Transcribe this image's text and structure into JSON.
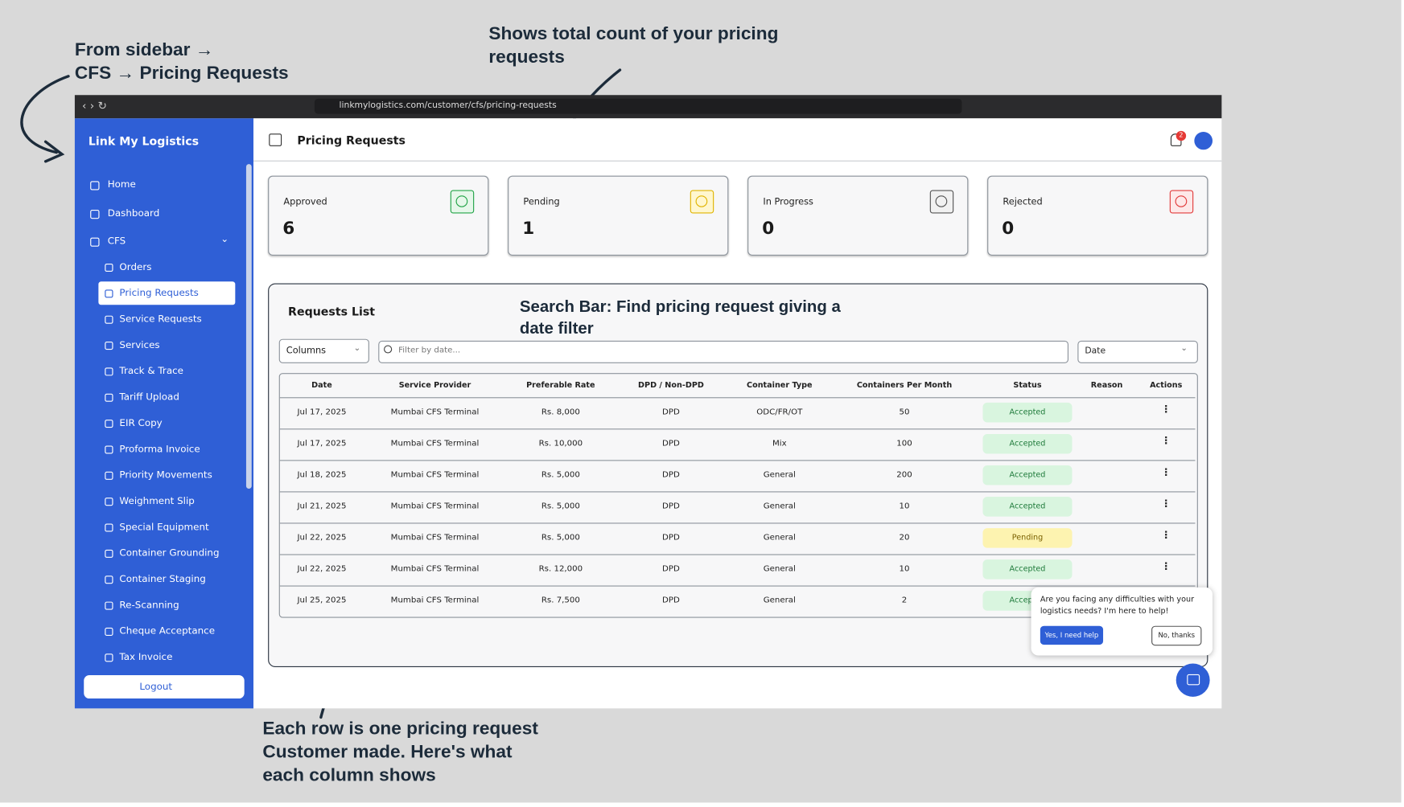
{
  "annotations": {
    "sidebar": [
      "From sidebar →",
      "CFS → Pricing Requests"
    ],
    "cards": [
      "Shows total count of your pricing",
      "requests"
    ],
    "search": [
      "Search Bar: Find pricing request giving a",
      "date filter"
    ],
    "rows": [
      "Each row is one pricing request",
      "Customer made. Here's what",
      "each column shows"
    ]
  },
  "browser": {
    "url": "linkmylogistics.com/customer/cfs/pricing-requests"
  },
  "sidebar": {
    "brand": "Link My Logistics",
    "items": [
      "Home",
      "Dashboard",
      "CFS"
    ],
    "subitems": [
      "Orders",
      "Pricing Requests",
      "Service Requests",
      "Services",
      "Track & Trace",
      "Tariff Upload",
      "EIR Copy",
      "Proforma Invoice",
      "Priority Movements",
      "Weighment Slip",
      "Special Equipment",
      "Container Grounding",
      "Container Staging",
      "Re-Scanning",
      "Cheque Acceptance",
      "Tax Invoice"
    ],
    "logout": "Logout"
  },
  "header": {
    "title": "Pricing Requests",
    "notifications": 2
  },
  "cards": [
    {
      "label": "Approved",
      "value": 6
    },
    {
      "label": "Pending",
      "value": 1
    },
    {
      "label": "In Progress",
      "value": 0
    },
    {
      "label": "Rejected",
      "value": 0
    }
  ],
  "requests": {
    "title": "Requests List",
    "columns_button": "Columns",
    "search_placeholder": "Filter by date...",
    "date_select": "Date",
    "table": {
      "columns": [
        "Date",
        "Service Provider",
        "Preferable Rate",
        "DPD / Non-DPD",
        "Container Type",
        "Containers Per Month",
        "Status",
        "Reason",
        "Actions"
      ],
      "rows": [
        {
          "date": "Jul 17, 2025",
          "provider": "Mumbai CFS Terminal",
          "rate": "Rs. 8,000",
          "dpd": "DPD",
          "type": "ODC/FR/OT",
          "containers": 50,
          "status": "Accepted"
        },
        {
          "date": "Jul 17, 2025",
          "provider": "Mumbai CFS Terminal",
          "rate": "Rs. 10,000",
          "dpd": "DPD",
          "type": "Mix",
          "containers": 100,
          "status": "Accepted"
        },
        {
          "date": "Jul 18, 2025",
          "provider": "Mumbai CFS Terminal",
          "rate": "Rs. 5,000",
          "dpd": "DPD",
          "type": "General",
          "containers": 200,
          "status": "Accepted"
        },
        {
          "date": "Jul 21, 2025",
          "provider": "Mumbai CFS Terminal",
          "rate": "Rs. 5,000",
          "dpd": "DPD",
          "type": "General",
          "containers": 10,
          "status": "Accepted"
        },
        {
          "date": "Jul 22, 2025",
          "provider": "Mumbai CFS Terminal",
          "rate": "Rs. 5,000",
          "dpd": "DPD",
          "type": "General",
          "containers": 20,
          "status": "Pending"
        },
        {
          "date": "Jul 22, 2025",
          "provider": "Mumbai CFS Terminal",
          "rate": "Rs. 12,000",
          "dpd": "DPD",
          "type": "General",
          "containers": 10,
          "status": "Accepted"
        },
        {
          "date": "Jul 25, 2025",
          "provider": "Mumbai CFS Terminal",
          "rate": "Rs. 7,500",
          "dpd": "DPD",
          "type": "General",
          "containers": 2,
          "status": "Accepted"
        }
      ]
    }
  },
  "help_popup": {
    "text": "Are you facing any difficulties with your logistics needs? I'm here to help!",
    "yes": "Yes, I need help",
    "no": "No, thanks"
  }
}
